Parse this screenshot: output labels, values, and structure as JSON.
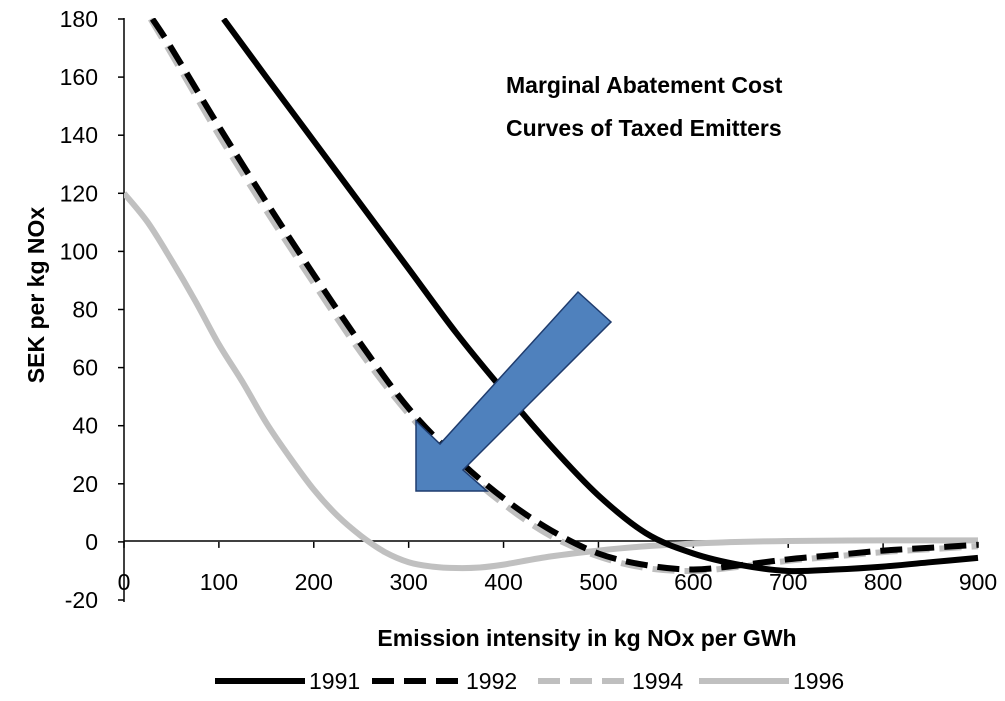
{
  "chart_data": {
    "type": "line",
    "title": "",
    "annotation": [
      "Marginal Abatement  Cost",
      "Curves of Taxed Emitters"
    ],
    "xlabel": "Emission intensity  in kg NOx  per  GWh",
    "ylabel": "SEK per  kg NOx",
    "xlim": [
      0,
      900
    ],
    "ylim": [
      -20,
      180
    ],
    "xticks": [
      0,
      100,
      200,
      300,
      400,
      500,
      600,
      700,
      800,
      900
    ],
    "yticks": [
      -20,
      0,
      20,
      40,
      60,
      80,
      100,
      120,
      140,
      160,
      180
    ],
    "grid": false,
    "legend_position": "bottom",
    "series": [
      {
        "name": "1991",
        "color": "#000000",
        "style": "solid",
        "points": [
          [
            105,
            180
          ],
          [
            150,
            160
          ],
          [
            200,
            138
          ],
          [
            250,
            116
          ],
          [
            300,
            94
          ],
          [
            350,
            72
          ],
          [
            400,
            52
          ],
          [
            450,
            33
          ],
          [
            500,
            16
          ],
          [
            550,
            3
          ],
          [
            600,
            -4
          ],
          [
            650,
            -8
          ],
          [
            700,
            -10
          ],
          [
            750,
            -9.5
          ],
          [
            800,
            -8.5
          ],
          [
            850,
            -7
          ],
          [
            900,
            -5.5
          ]
        ]
      },
      {
        "name": "1992",
        "color": "#000000",
        "style": "dashed",
        "points": [
          [
            30,
            180
          ],
          [
            50,
            170
          ],
          [
            100,
            143
          ],
          [
            150,
            117
          ],
          [
            200,
            92
          ],
          [
            250,
            68
          ],
          [
            300,
            46
          ],
          [
            350,
            29
          ],
          [
            400,
            15
          ],
          [
            450,
            4
          ],
          [
            500,
            -4
          ],
          [
            550,
            -8
          ],
          [
            600,
            -9.5
          ],
          [
            650,
            -8
          ],
          [
            700,
            -6
          ],
          [
            750,
            -4.5
          ],
          [
            800,
            -3
          ],
          [
            850,
            -2
          ],
          [
            900,
            -1
          ]
        ]
      },
      {
        "name": "1994",
        "color": "#bfbfbf",
        "style": "dashed",
        "points": [
          [
            28,
            180
          ],
          [
            50,
            168
          ],
          [
            100,
            140
          ],
          [
            150,
            114
          ],
          [
            200,
            89
          ],
          [
            250,
            65
          ],
          [
            300,
            44
          ],
          [
            350,
            27
          ],
          [
            400,
            13
          ],
          [
            450,
            2
          ],
          [
            500,
            -5
          ],
          [
            550,
            -9
          ],
          [
            600,
            -10
          ],
          [
            650,
            -8.5
          ],
          [
            700,
            -6.5
          ],
          [
            750,
            -5
          ],
          [
            800,
            -3.5
          ],
          [
            850,
            -2.5
          ],
          [
            900,
            -1.5
          ]
        ]
      },
      {
        "name": "1996",
        "color": "#c0c0c0",
        "style": "solid",
        "points": [
          [
            0,
            120
          ],
          [
            25,
            110
          ],
          [
            50,
            97
          ],
          [
            75,
            83
          ],
          [
            100,
            68
          ],
          [
            125,
            55
          ],
          [
            150,
            41
          ],
          [
            175,
            29
          ],
          [
            200,
            18
          ],
          [
            225,
            9
          ],
          [
            250,
            2
          ],
          [
            275,
            -3.5
          ],
          [
            300,
            -7
          ],
          [
            325,
            -8.5
          ],
          [
            350,
            -9
          ],
          [
            375,
            -8.8
          ],
          [
            400,
            -7.8
          ],
          [
            450,
            -5
          ],
          [
            500,
            -3
          ],
          [
            550,
            -1.5
          ],
          [
            600,
            -0.6
          ],
          [
            650,
            0
          ],
          [
            700,
            0.3
          ],
          [
            800,
            0.5
          ],
          [
            900,
            0.5
          ]
        ]
      }
    ]
  }
}
